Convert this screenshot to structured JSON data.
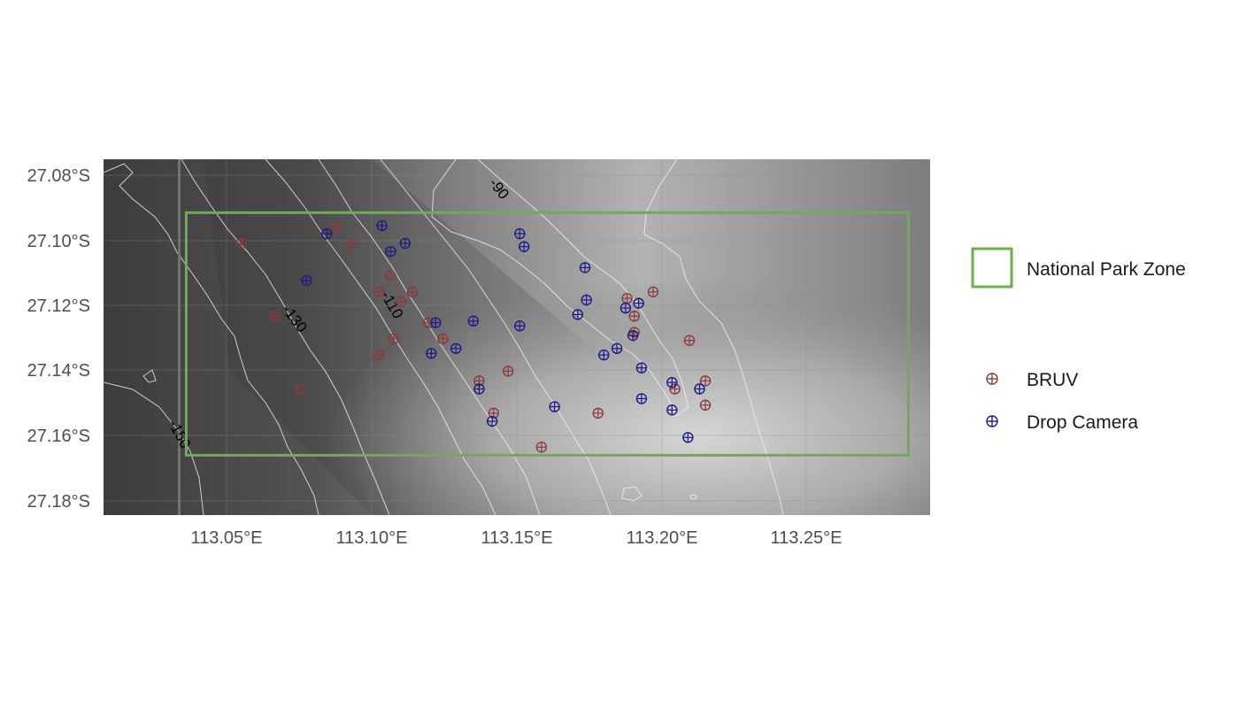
{
  "map": {
    "longitude_ticks": [
      "113.05°E",
      "113.10°E",
      "113.15°E",
      "113.20°E",
      "113.25°E"
    ],
    "latitude_ticks": [
      "27.08°S",
      "27.10°S",
      "27.12°S",
      "27.14°S",
      "27.16°S",
      "27.18°S"
    ],
    "extent": {
      "lon_min": 113.005,
      "lon_max": 113.29,
      "lat_min": -27.185,
      "lat_max": -27.075
    },
    "zone": {
      "label": "National Park Zone",
      "lon_min": 113.0335,
      "lon_max": 113.2825,
      "lat_min": -27.1665,
      "lat_max": -27.0915,
      "color": "#6ab04c"
    },
    "contour_labels": [
      "-90",
      "-110",
      "-130",
      "-150"
    ],
    "grid": true
  },
  "legend": {
    "zone_label": "National Park Zone",
    "series": [
      {
        "name": "BRUV",
        "color": "#8b3a3a"
      },
      {
        "name": "Drop Camera",
        "color": "#1a1a8c"
      }
    ]
  },
  "chart_data": {
    "type": "scatter",
    "title": "",
    "xlabel": "",
    "ylabel": "",
    "xlim": [
      113.005,
      113.29
    ],
    "ylim": [
      -27.185,
      -27.075
    ],
    "series": [
      {
        "name": "BRUV",
        "color": "#8b3a3a",
        "points": [
          [
            113.0525,
            -27.101
          ],
          [
            113.0855,
            -27.096
          ],
          [
            113.0905,
            -27.101
          ],
          [
            113.104,
            -27.111
          ],
          [
            113.1,
            -27.116
          ],
          [
            113.1075,
            -27.119
          ],
          [
            113.1115,
            -27.116
          ],
          [
            113.064,
            -27.1235
          ],
          [
            113.117,
            -27.1255
          ],
          [
            113.105,
            -27.1305
          ],
          [
            113.122,
            -27.1305
          ],
          [
            113.1,
            -27.1355
          ],
          [
            113.073,
            -27.146
          ],
          [
            113.1345,
            -27.1435
          ],
          [
            113.1445,
            -27.1405
          ],
          [
            113.1395,
            -27.1535
          ],
          [
            113.156,
            -27.164
          ],
          [
            113.1755,
            -27.1535
          ],
          [
            113.1855,
            -27.118
          ],
          [
            113.1945,
            -27.116
          ],
          [
            113.188,
            -27.1235
          ],
          [
            113.188,
            -27.1285
          ],
          [
            113.207,
            -27.131
          ],
          [
            113.202,
            -27.146
          ],
          [
            113.2125,
            -27.1435
          ],
          [
            113.2125,
            -27.151
          ]
        ]
      },
      {
        "name": "Drop Camera",
        "color": "#1a1a8c",
        "points": [
          [
            113.082,
            -27.098
          ],
          [
            113.101,
            -27.0955
          ],
          [
            113.104,
            -27.1035
          ],
          [
            113.109,
            -27.101
          ],
          [
            113.075,
            -27.1125
          ],
          [
            113.1195,
            -27.1255
          ],
          [
            113.1325,
            -27.125
          ],
          [
            113.118,
            -27.135
          ],
          [
            113.1265,
            -27.1335
          ],
          [
            113.1345,
            -27.146
          ],
          [
            113.139,
            -27.156
          ],
          [
            113.1485,
            -27.098
          ],
          [
            113.15,
            -27.102
          ],
          [
            113.1485,
            -27.1265
          ],
          [
            113.1605,
            -27.1515
          ],
          [
            113.171,
            -27.1085
          ],
          [
            113.1715,
            -27.1185
          ],
          [
            113.1685,
            -27.123
          ],
          [
            113.1775,
            -27.1355
          ],
          [
            113.182,
            -27.1335
          ],
          [
            113.185,
            -27.121
          ],
          [
            113.1895,
            -27.1195
          ],
          [
            113.1875,
            -27.1295
          ],
          [
            113.1905,
            -27.1395
          ],
          [
            113.1905,
            -27.149
          ],
          [
            113.201,
            -27.144
          ],
          [
            113.201,
            -27.1525
          ],
          [
            113.2105,
            -27.146
          ],
          [
            113.2065,
            -27.161
          ]
        ]
      }
    ]
  }
}
